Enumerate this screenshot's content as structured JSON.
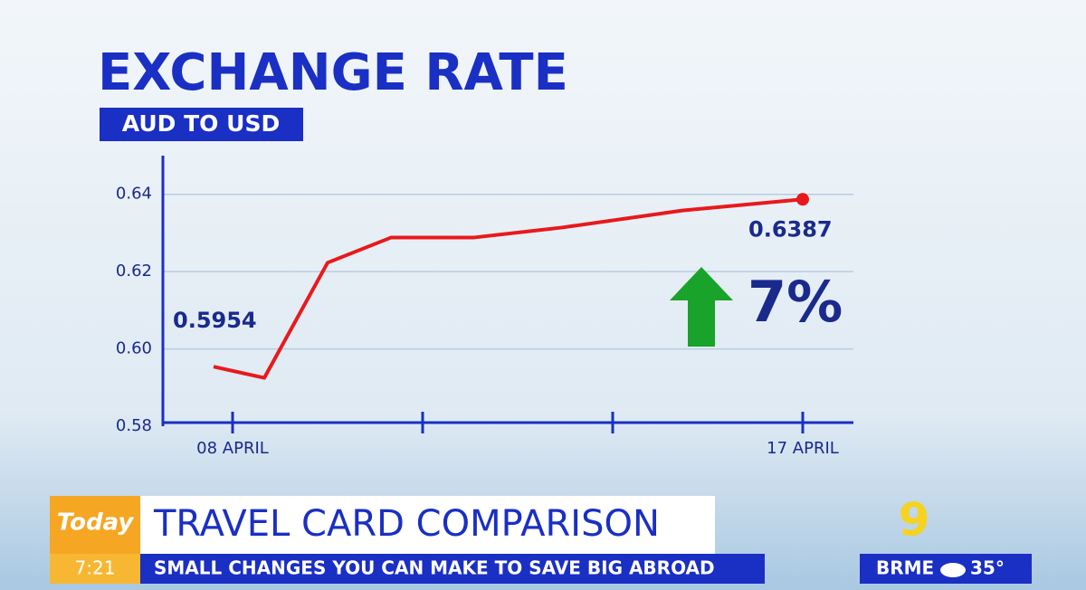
{
  "chart_data": {
    "type": "line",
    "title": "EXCHANGE RATE",
    "subtitle": "AUD TO USD",
    "x": [
      7.7,
      8.5,
      9.5,
      10.5,
      11.8,
      13.2,
      15.1,
      17
    ],
    "values": [
      0.5954,
      0.5925,
      0.6223,
      0.6288,
      0.6288,
      0.6314,
      0.6358,
      0.6387
    ],
    "color": "#e8191c",
    "xlim": [
      6.9,
      17.8
    ],
    "xticks": [
      {
        "value": 8,
        "label": "08 APRIL"
      },
      {
        "value": 11,
        "label": null
      },
      {
        "value": 14,
        "label": null
      },
      {
        "value": 17,
        "label": "17 APRIL"
      }
    ],
    "ylim": [
      0.58,
      0.65
    ],
    "yticks": [
      0.58,
      {
        "value": 0.6,
        "label": "0.60"
      },
      0.62,
      0.64
    ],
    "grid": true,
    "annotation": "7%"
  },
  "ticker": {
    "brand": "Today",
    "time": "7:21",
    "headline": "TRAVEL CARD COMPARISON",
    "subline": "SMALL CHANGES YOU CAN MAKE TO SAVE BIG ABROAD",
    "channel": "9",
    "city": "BRME",
    "temperature": "35°"
  }
}
